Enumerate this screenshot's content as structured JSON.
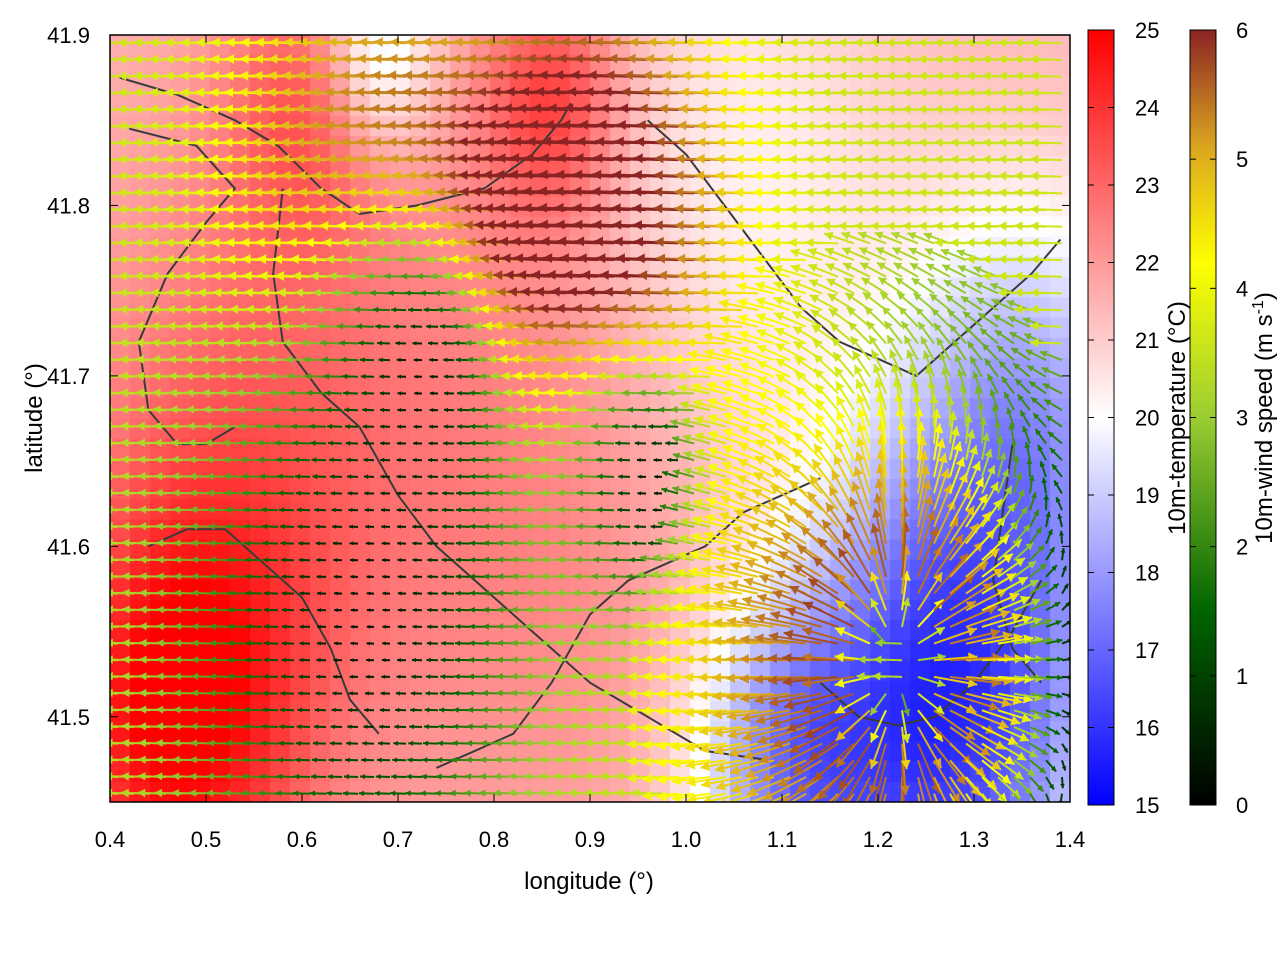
{
  "chart_data": {
    "type": "heatmap",
    "title": "",
    "xlabel": "longitude (°)",
    "ylabel": "latitude (°)",
    "xlim": [
      0.4,
      1.4
    ],
    "ylim": [
      41.45,
      41.9
    ],
    "x_ticks": [
      "0.4",
      "0.5",
      "0.6",
      "0.7",
      "0.8",
      "0.9",
      "1.0",
      "1.1",
      "1.2",
      "1.3",
      "1.4"
    ],
    "y_ticks": [
      "41.5",
      "41.6",
      "41.7",
      "41.8",
      "41.9"
    ],
    "grid": false,
    "colorbars": [
      {
        "label": "10m-temperature (°C)",
        "range": [
          15,
          25
        ],
        "ticks": [
          "15",
          "16",
          "17",
          "18",
          "19",
          "20",
          "21",
          "22",
          "23",
          "24",
          "25"
        ],
        "colors": [
          "#0000ff",
          "#ffffff",
          "#ff0000"
        ]
      },
      {
        "label": "10m-wind speed (m s-1)",
        "label_main": "10m-wind speed (m s",
        "label_sup": "-1",
        "label_end": ")",
        "range": [
          0,
          6
        ],
        "ticks": [
          "0",
          "1",
          "2",
          "3",
          "4",
          "5",
          "6"
        ],
        "colors": [
          "#000000",
          "#006400",
          "#9acd32",
          "#ffff00",
          "#daa520",
          "#8b2323"
        ]
      }
    ],
    "temperature_field": {
      "base": 21.5,
      "features": [
        {
          "lon": 0.47,
          "lat": 41.5,
          "amplitude": 3.4,
          "spread": 0.09
        },
        {
          "lon": 0.55,
          "lat": 41.65,
          "amplitude": 1.5,
          "spread": 0.12
        },
        {
          "lon": 0.86,
          "lat": 41.86,
          "amplitude": 2.2,
          "spread": 0.05
        },
        {
          "lon": 0.6,
          "lat": 41.86,
          "amplitude": 1.6,
          "spread": 0.06
        },
        {
          "lon": 0.85,
          "lat": 41.65,
          "amplitude": 1.0,
          "spread": 0.15
        },
        {
          "lon": 1.27,
          "lat": 41.5,
          "amplitude": -5.5,
          "spread": 0.11
        },
        {
          "lon": 1.1,
          "lat": 41.47,
          "amplitude": -3.0,
          "spread": 0.07
        },
        {
          "lon": 1.36,
          "lat": 41.68,
          "amplitude": -2.8,
          "spread": 0.09
        },
        {
          "lon": 0.68,
          "lat": 41.89,
          "amplitude": -2.4,
          "spread": 0.04
        },
        {
          "lon": 1.05,
          "lat": 41.8,
          "amplitude": -1.4,
          "spread": 0.12
        }
      ]
    },
    "wind_field": {
      "prevailing_u": -3.0,
      "prevailing_v": 0.1,
      "calm_zones": [
        {
          "lon": 0.67,
          "lat": 41.56,
          "radius": 0.12
        },
        {
          "lon": 0.73,
          "lat": 41.7,
          "radius": 0.08
        },
        {
          "lon": 0.97,
          "lat": 41.64,
          "radius": 0.05
        },
        {
          "lon": 1.21,
          "lat": 41.63,
          "radius": 0.05
        }
      ],
      "strong_zones": [
        {
          "lon": 0.72,
          "lat": 41.77,
          "amplitude": 1.5,
          "radius": 0.1
        },
        {
          "lon": 0.95,
          "lat": 41.8,
          "amplitude": 1.4,
          "radius": 0.08
        }
      ],
      "divergence_center": {
        "lon": 1.22,
        "lat": 41.53,
        "max_speed": 6.0,
        "radius": 0.17
      }
    },
    "contours": [
      [
        [
          0.41,
          41.875
        ],
        [
          0.47,
          41.865
        ],
        [
          0.53,
          41.85
        ],
        [
          0.575,
          41.835
        ],
        [
          0.62,
          41.81
        ],
        [
          0.66,
          41.795
        ],
        [
          0.72,
          41.8
        ],
        [
          0.79,
          41.81
        ],
        [
          0.84,
          41.83
        ],
        [
          0.87,
          41.85
        ],
        [
          0.88,
          41.86
        ]
      ],
      [
        [
          0.42,
          41.845
        ],
        [
          0.49,
          41.835
        ],
        [
          0.53,
          41.81
        ],
        [
          0.5,
          41.79
        ],
        [
          0.46,
          41.76
        ],
        [
          0.43,
          41.72
        ],
        [
          0.44,
          41.68
        ],
        [
          0.47,
          41.66
        ],
        [
          0.5,
          41.66
        ],
        [
          0.53,
          41.67
        ]
      ],
      [
        [
          0.58,
          41.81
        ],
        [
          0.57,
          41.76
        ],
        [
          0.58,
          41.72
        ],
        [
          0.62,
          41.69
        ],
        [
          0.66,
          41.67
        ],
        [
          0.7,
          41.63
        ],
        [
          0.74,
          41.6
        ],
        [
          0.78,
          41.58
        ],
        [
          0.82,
          41.56
        ],
        [
          0.86,
          41.54
        ],
        [
          0.9,
          41.52
        ],
        [
          0.96,
          41.5
        ],
        [
          1.02,
          41.48
        ],
        [
          1.08,
          41.475
        ]
      ],
      [
        [
          0.44,
          41.6
        ],
        [
          0.48,
          41.61
        ],
        [
          0.52,
          41.61
        ],
        [
          0.56,
          41.59
        ],
        [
          0.6,
          41.57
        ],
        [
          0.63,
          41.54
        ],
        [
          0.65,
          41.51
        ],
        [
          0.68,
          41.49
        ]
      ],
      [
        [
          0.74,
          41.47
        ],
        [
          0.78,
          41.48
        ],
        [
          0.82,
          41.49
        ],
        [
          0.86,
          41.52
        ],
        [
          0.9,
          41.56
        ],
        [
          0.94,
          41.58
        ],
        [
          0.98,
          41.59
        ],
        [
          1.02,
          41.6
        ],
        [
          1.06,
          41.62
        ],
        [
          1.1,
          41.63
        ],
        [
          1.14,
          41.64
        ]
      ],
      [
        [
          0.96,
          41.85
        ],
        [
          1.0,
          41.83
        ],
        [
          1.04,
          41.8
        ],
        [
          1.08,
          41.77
        ],
        [
          1.12,
          41.74
        ],
        [
          1.16,
          41.72
        ],
        [
          1.2,
          41.71
        ],
        [
          1.24,
          41.7
        ],
        [
          1.28,
          41.72
        ],
        [
          1.32,
          41.74
        ],
        [
          1.36,
          41.76
        ],
        [
          1.39,
          41.78
        ]
      ],
      [
        [
          1.14,
          41.52
        ],
        [
          1.18,
          41.5
        ],
        [
          1.22,
          41.495
        ],
        [
          1.26,
          41.5
        ],
        [
          1.3,
          41.52
        ],
        [
          1.34,
          41.55
        ],
        [
          1.37,
          41.58
        ]
      ],
      [
        [
          1.34,
          41.66
        ],
        [
          1.33,
          41.62
        ],
        [
          1.32,
          41.58
        ],
        [
          1.34,
          41.54
        ],
        [
          1.37,
          41.52
        ]
      ]
    ]
  }
}
